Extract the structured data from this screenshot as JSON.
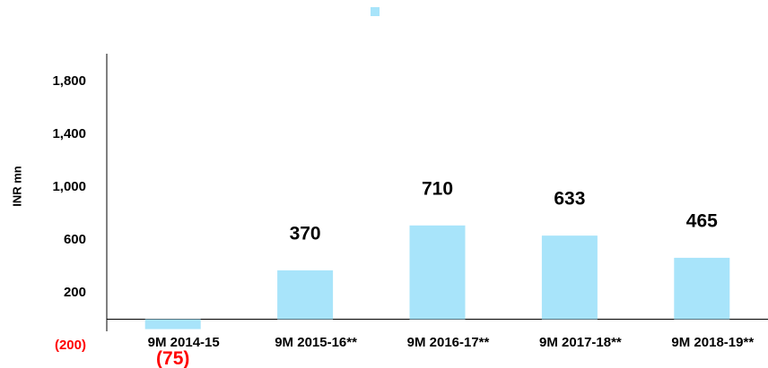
{
  "chart_data": {
    "type": "bar",
    "y_axis_label": "INR mn",
    "categories": [
      "9M 2014-15",
      "9M 2015-16**",
      "9M 2016-17**",
      "9M 2017-18**",
      "9M 2018-19**"
    ],
    "series": [
      {
        "color": "#a8e4fa",
        "values": [
          -75,
          370,
          710,
          633,
          465
        ],
        "value_labels": [
          "(75)",
          "370",
          "710",
          "633",
          "465"
        ]
      }
    ],
    "negative_label_color": "#ff0000",
    "ylim": [
      -200,
      2000
    ],
    "yticks": [
      {
        "value": -200,
        "label": "(200)"
      },
      200,
      600,
      {
        "value": 1000,
        "label": "1,000"
      },
      {
        "value": 1400,
        "label": "1,400"
      },
      {
        "value": 1800,
        "label": "1,800"
      }
    ],
    "grid": false,
    "legend": "top"
  }
}
